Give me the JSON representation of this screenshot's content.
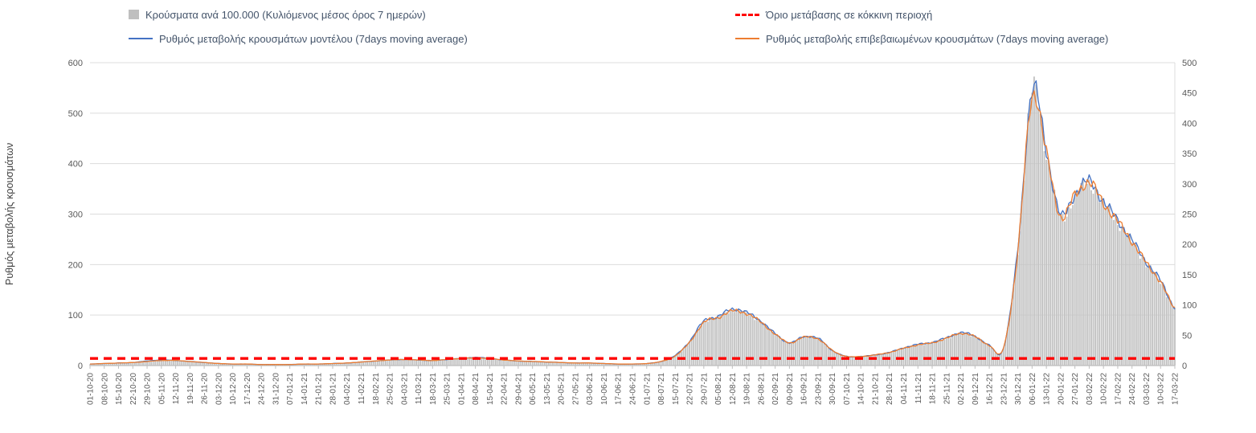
{
  "legend": {
    "items": [
      {
        "id": "bars",
        "label": "Κρούσματα ανά 100.000 (Κυλιόμενος μέσος όρος 7 ημερών)",
        "swatch": "gray-bar",
        "color": "#bfbfbf"
      },
      {
        "id": "threshold",
        "label": "Όριο μετάβασης σε κόκκινη περιοχή",
        "swatch": "red-dashed-line",
        "color": "#ff0000"
      },
      {
        "id": "model",
        "label": "Ρυθμός μεταβολής κρουσμάτων μοντέλου (7days moving average)",
        "swatch": "blue-line",
        "color": "#4472c4"
      },
      {
        "id": "confirmed",
        "label": "Ρυθμός μεταβολής επιβεβαιωμένων κρουσμάτων (7days moving average)",
        "swatch": "orange-line",
        "color": "#ed7d31"
      }
    ]
  },
  "chart_data": {
    "type": "combo bar+line",
    "title": "",
    "ylabel_left": "Ρυθμός μεταβολής κρουσμάτων",
    "axes": {
      "left": {
        "min": 0,
        "max": 600,
        "ticks": [
          0,
          100,
          200,
          300,
          400,
          500,
          600
        ]
      },
      "right": {
        "min": 0,
        "max": 500,
        "ticks": [
          0,
          50,
          100,
          150,
          200,
          250,
          300,
          350,
          400,
          450,
          500
        ]
      }
    },
    "grid": "horizontal",
    "legend_position": "top",
    "categories": [
      "01-10-20",
      "08-10-20",
      "15-10-20",
      "22-10-20",
      "29-10-20",
      "05-11-20",
      "12-11-20",
      "19-11-20",
      "26-11-20",
      "03-12-20",
      "10-12-20",
      "17-12-20",
      "24-12-20",
      "31-12-20",
      "07-01-21",
      "14-01-21",
      "21-01-21",
      "28-01-21",
      "04-02-21",
      "11-02-21",
      "18-02-21",
      "25-02-21",
      "04-03-21",
      "11-03-21",
      "18-03-21",
      "25-03-21",
      "01-04-21",
      "08-04-21",
      "15-04-21",
      "22-04-21",
      "29-04-21",
      "06-05-21",
      "13-05-21",
      "20-05-21",
      "27-05-21",
      "03-06-21",
      "10-06-21",
      "17-06-21",
      "24-06-21",
      "01-07-21",
      "08-07-21",
      "15-07-21",
      "22-07-21",
      "29-07-21",
      "05-08-21",
      "12-08-21",
      "19-08-21",
      "26-08-21",
      "02-09-21",
      "09-09-21",
      "16-09-21",
      "23-09-21",
      "30-09-21",
      "07-10-21",
      "14-10-21",
      "21-10-21",
      "28-10-21",
      "04-11-21",
      "11-11-21",
      "18-11-21",
      "25-11-21",
      "02-12-21",
      "09-12-21",
      "16-12-21",
      "23-12-21",
      "30-12-21",
      "06-01-22",
      "13-01-22",
      "20-01-22",
      "27-01-22",
      "03-02-22",
      "10-02-22",
      "17-02-22",
      "24-02-22",
      "03-03-22",
      "10-03-22",
      "17-03-22"
    ],
    "series": [
      {
        "name": "Κρούσματα ανά 100.000 (Κυλιόμενος μέσος όρος 7 ημερών)",
        "type": "bar",
        "axis": "right",
        "color": "#c3c3c3",
        "values": [
          2,
          3,
          4,
          5,
          7,
          9,
          8,
          7,
          5,
          3,
          2,
          2,
          2,
          2,
          2,
          2,
          3,
          3,
          4,
          6,
          7,
          9,
          10,
          9,
          8,
          10,
          12,
          13,
          12,
          9,
          7,
          7,
          6,
          5,
          4,
          4,
          3,
          3,
          2,
          3,
          7,
          16,
          39,
          72,
          80,
          92,
          86,
          72,
          52,
          37,
          47,
          44,
          25,
          15,
          15,
          17,
          21,
          29,
          34,
          38,
          45,
          53,
          48,
          33,
          29,
          190,
          455,
          350,
          245,
          280,
          300,
          268,
          237,
          204,
          169,
          138,
          95
        ]
      },
      {
        "name": "Ρυθμός μεταβολής κρουσμάτων μοντέλου (7days moving average)",
        "type": "line",
        "axis": "left",
        "color": "#4472c4",
        "values": [
          3,
          4,
          5,
          6,
          9,
          11,
          10,
          8,
          6,
          4,
          3,
          3,
          2,
          2,
          2,
          3,
          3,
          4,
          5,
          7,
          9,
          11,
          12,
          11,
          10,
          12,
          14,
          16,
          14,
          11,
          9,
          8,
          7,
          6,
          5,
          5,
          4,
          3,
          3,
          4,
          8,
          20,
          48,
          88,
          97,
          112,
          105,
          88,
          63,
          45,
          57,
          54,
          30,
          18,
          18,
          21,
          26,
          35,
          42,
          46,
          55,
          65,
          58,
          40,
          35,
          230,
          548,
          425,
          298,
          340,
          365,
          325,
          288,
          248,
          205,
          168,
          115
        ]
      },
      {
        "name": "Ρυθμός μεταβολής επιβεβαιωμένων κρουσμάτων (7days moving average)",
        "type": "line",
        "axis": "left",
        "color": "#ed7d31",
        "values": [
          3,
          4,
          5,
          6,
          8,
          10,
          10,
          8,
          6,
          4,
          3,
          3,
          2,
          2,
          2,
          3,
          3,
          4,
          5,
          7,
          9,
          11,
          12,
          11,
          10,
          12,
          14,
          15,
          14,
          11,
          9,
          8,
          7,
          6,
          5,
          5,
          4,
          3,
          3,
          4,
          8,
          19,
          46,
          85,
          95,
          108,
          103,
          86,
          62,
          45,
          56,
          53,
          30,
          18,
          18,
          21,
          26,
          34,
          41,
          45,
          54,
          64,
          57,
          40,
          35,
          225,
          535,
          420,
          295,
          338,
          362,
          322,
          285,
          246,
          203,
          166,
          113
        ]
      },
      {
        "name": "Όριο μετάβασης σε κόκκινη περιοχή",
        "type": "threshold-line",
        "axis": "left",
        "color": "#ff0000",
        "value": 14
      }
    ]
  }
}
